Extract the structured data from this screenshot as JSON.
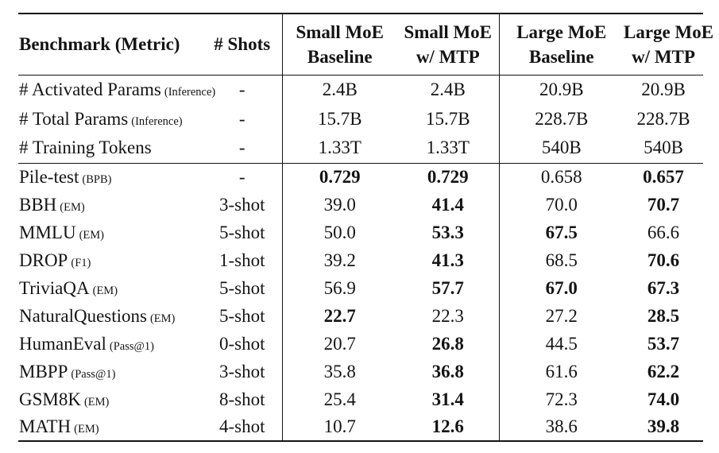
{
  "table": {
    "columns": [
      {
        "line1": "Benchmark (Metric)",
        "line2": ""
      },
      {
        "line1": "# Shots",
        "line2": ""
      },
      {
        "line1": "Small MoE",
        "line2": "Baseline"
      },
      {
        "line1": "Small MoE",
        "line2": "w/ MTP"
      },
      {
        "line1": "Large MoE",
        "line2": "Baseline"
      },
      {
        "line1": "Large MoE",
        "line2": "w/ MTP"
      }
    ],
    "info_rows": [
      {
        "benchmark": "# Activated Params",
        "metric": "(Inference)",
        "shots": "-",
        "values": [
          {
            "text": "2.4B",
            "bold": false
          },
          {
            "text": "2.4B",
            "bold": false
          },
          {
            "text": "20.9B",
            "bold": false
          },
          {
            "text": "20.9B",
            "bold": false
          }
        ]
      },
      {
        "benchmark": "# Total Params",
        "metric": "(Inference)",
        "shots": "-",
        "values": [
          {
            "text": "15.7B",
            "bold": false
          },
          {
            "text": "15.7B",
            "bold": false
          },
          {
            "text": "228.7B",
            "bold": false
          },
          {
            "text": "228.7B",
            "bold": false
          }
        ]
      },
      {
        "benchmark": "# Training Tokens",
        "metric": "",
        "shots": "-",
        "values": [
          {
            "text": "1.33T",
            "bold": false
          },
          {
            "text": "1.33T",
            "bold": false
          },
          {
            "text": "540B",
            "bold": false
          },
          {
            "text": "540B",
            "bold": false
          }
        ]
      }
    ],
    "benchmark_rows": [
      {
        "benchmark": "Pile-test",
        "metric": "(BPB)",
        "shots": "-",
        "values": [
          {
            "text": "0.729",
            "bold": true
          },
          {
            "text": "0.729",
            "bold": true
          },
          {
            "text": "0.658",
            "bold": false
          },
          {
            "text": "0.657",
            "bold": true
          }
        ]
      },
      {
        "benchmark": "BBH",
        "metric": "(EM)",
        "shots": "3-shot",
        "values": [
          {
            "text": "39.0",
            "bold": false
          },
          {
            "text": "41.4",
            "bold": true
          },
          {
            "text": "70.0",
            "bold": false
          },
          {
            "text": "70.7",
            "bold": true
          }
        ]
      },
      {
        "benchmark": "MMLU",
        "metric": "(EM)",
        "shots": "5-shot",
        "values": [
          {
            "text": "50.0",
            "bold": false
          },
          {
            "text": "53.3",
            "bold": true
          },
          {
            "text": "67.5",
            "bold": true
          },
          {
            "text": "66.6",
            "bold": false
          }
        ]
      },
      {
        "benchmark": "DROP",
        "metric": "(F1)",
        "shots": "1-shot",
        "values": [
          {
            "text": "39.2",
            "bold": false
          },
          {
            "text": "41.3",
            "bold": true
          },
          {
            "text": "68.5",
            "bold": false
          },
          {
            "text": "70.6",
            "bold": true
          }
        ]
      },
      {
        "benchmark": "TriviaQA",
        "metric": "(EM)",
        "shots": "5-shot",
        "values": [
          {
            "text": "56.9",
            "bold": false
          },
          {
            "text": "57.7",
            "bold": true
          },
          {
            "text": "67.0",
            "bold": true
          },
          {
            "text": "67.3",
            "bold": true
          }
        ]
      },
      {
        "benchmark": "NaturalQuestions",
        "metric": "(EM)",
        "shots": "5-shot",
        "values": [
          {
            "text": "22.7",
            "bold": true
          },
          {
            "text": "22.3",
            "bold": false
          },
          {
            "text": "27.2",
            "bold": false
          },
          {
            "text": "28.5",
            "bold": true
          }
        ]
      },
      {
        "benchmark": "HumanEval",
        "metric": "(Pass@1)",
        "shots": "0-shot",
        "values": [
          {
            "text": "20.7",
            "bold": false
          },
          {
            "text": "26.8",
            "bold": true
          },
          {
            "text": "44.5",
            "bold": false
          },
          {
            "text": "53.7",
            "bold": true
          }
        ]
      },
      {
        "benchmark": "MBPP",
        "metric": "(Pass@1)",
        "shots": "3-shot",
        "values": [
          {
            "text": "35.8",
            "bold": false
          },
          {
            "text": "36.8",
            "bold": true
          },
          {
            "text": "61.6",
            "bold": false
          },
          {
            "text": "62.2",
            "bold": true
          }
        ]
      },
      {
        "benchmark": "GSM8K",
        "metric": "(EM)",
        "shots": "8-shot",
        "values": [
          {
            "text": "25.4",
            "bold": false
          },
          {
            "text": "31.4",
            "bold": true
          },
          {
            "text": "72.3",
            "bold": false
          },
          {
            "text": "74.0",
            "bold": true
          }
        ]
      },
      {
        "benchmark": "MATH",
        "metric": "(EM)",
        "shots": "4-shot",
        "values": [
          {
            "text": "10.7",
            "bold": false
          },
          {
            "text": "12.6",
            "bold": true
          },
          {
            "text": "38.6",
            "bold": false
          },
          {
            "text": "39.8",
            "bold": true
          }
        ]
      }
    ]
  }
}
